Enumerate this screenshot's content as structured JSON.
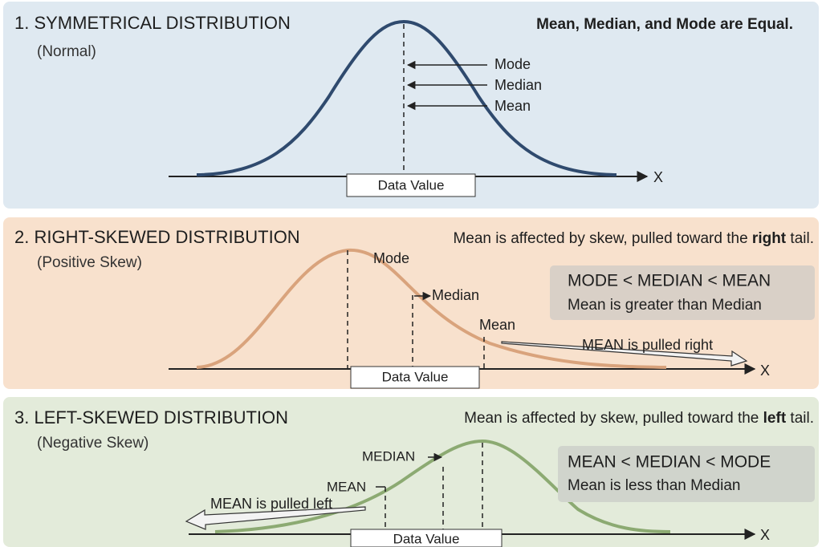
{
  "panels": [
    {
      "title": "1. SYMMETRICAL DISTRIBUTION",
      "subtitle": "(Normal)",
      "note": {
        "before": "Mean, Median, and Mode are Equal."
      },
      "markers": [
        {
          "label": "Mode"
        },
        {
          "label": "Median"
        },
        {
          "label": "Mean"
        }
      ],
      "axis_label": "Data Value",
      "axis_end": "X"
    },
    {
      "title": "2. RIGHT-SKEWED DISTRIBUTION",
      "subtitle": "(Positive Skew)",
      "note": {
        "before": "Mean is affected by skew, pulled toward the ",
        "emphasis": "right",
        "after": " tail."
      },
      "markers": [
        {
          "label": "Mode"
        },
        {
          "label": "Median"
        },
        {
          "label": "Mean"
        }
      ],
      "summary": {
        "relation": "MODE < MEDIAN < MEAN",
        "description": "Mean is greater than Median"
      },
      "pull_label": "MEAN is pulled right",
      "axis_label": "Data Value",
      "axis_end": "X"
    },
    {
      "title": "3. LEFT-SKEWED DISTRIBUTION",
      "subtitle": "(Negative Skew)",
      "note": {
        "before": "Mean is affected by skew, pulled toward the ",
        "emphasis": "left",
        "after": " tail."
      },
      "markers": [
        {
          "label": "MEDIAN"
        },
        {
          "label": "MEAN"
        }
      ],
      "summary": {
        "relation": "MEAN < MEDIAN < MODE",
        "description": "Mean is less than Median"
      },
      "pull_label": "MEAN is pulled left",
      "axis_label": "Data Value",
      "axis_end": "X"
    }
  ]
}
